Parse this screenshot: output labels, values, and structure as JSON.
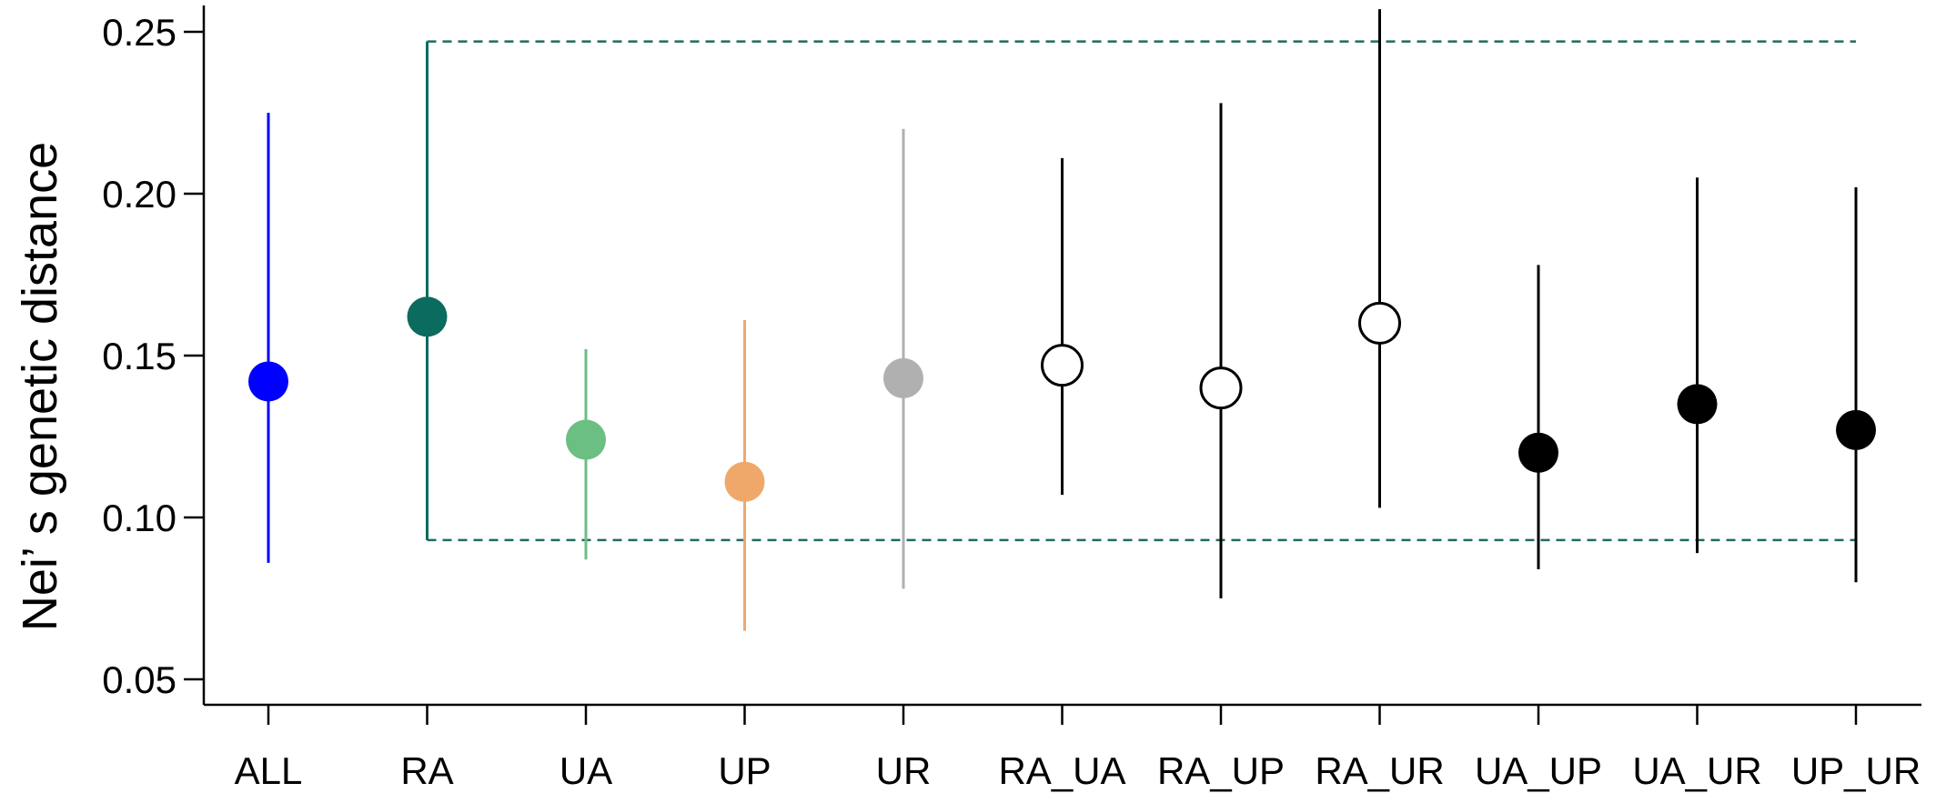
{
  "chart_data": {
    "type": "scatter",
    "title": "",
    "xlabel": "",
    "ylabel": "Nei’ s genetic distance",
    "ylim": [
      0.04,
      0.26
    ],
    "yticks": [
      0.05,
      0.1,
      0.15,
      0.2,
      0.25
    ],
    "ytick_labels": [
      "0.05",
      "0.10",
      "0.15",
      "0.20",
      "0.25"
    ],
    "categories": [
      "ALL",
      "RA",
      "UA",
      "UP",
      "UR",
      "RA_UA",
      "RA_UP",
      "RA_UR",
      "UA_UP",
      "UA_UR",
      "UP_UR"
    ],
    "points": [
      {
        "category": "ALL",
        "value": 0.142,
        "lower": 0.086,
        "upper": 0.225,
        "color": "#0000ff",
        "filled": true
      },
      {
        "category": "RA",
        "value": 0.162,
        "lower": 0.093,
        "upper": 0.247,
        "color": "#0b6b5e",
        "filled": true
      },
      {
        "category": "UA",
        "value": 0.124,
        "lower": 0.087,
        "upper": 0.152,
        "color": "#6bbf82",
        "filled": true
      },
      {
        "category": "UP",
        "value": 0.111,
        "lower": 0.065,
        "upper": 0.161,
        "color": "#f0a86a",
        "filled": true
      },
      {
        "category": "UR",
        "value": 0.143,
        "lower": 0.078,
        "upper": 0.22,
        "color": "#b0b0b0",
        "filled": true
      },
      {
        "category": "RA_UA",
        "value": 0.147,
        "lower": 0.107,
        "upper": 0.211,
        "color": "#000000",
        "filled": false
      },
      {
        "category": "RA_UP",
        "value": 0.14,
        "lower": 0.075,
        "upper": 0.228,
        "color": "#000000",
        "filled": false
      },
      {
        "category": "RA_UR",
        "value": 0.16,
        "lower": 0.103,
        "upper": 0.257,
        "color": "#000000",
        "filled": false
      },
      {
        "category": "UA_UP",
        "value": 0.12,
        "lower": 0.084,
        "upper": 0.178,
        "color": "#000000",
        "filled": true
      },
      {
        "category": "UA_UR",
        "value": 0.135,
        "lower": 0.089,
        "upper": 0.205,
        "color": "#000000",
        "filled": true
      },
      {
        "category": "UP_UR",
        "value": 0.127,
        "lower": 0.08,
        "upper": 0.202,
        "color": "#000000",
        "filled": true
      }
    ],
    "reference_band": {
      "lower": 0.093,
      "upper": 0.247,
      "from_category": "RA",
      "to_category": "UP_UR",
      "color": "#1f6b60",
      "style": "dashed"
    },
    "grid": false,
    "legend": "none"
  }
}
